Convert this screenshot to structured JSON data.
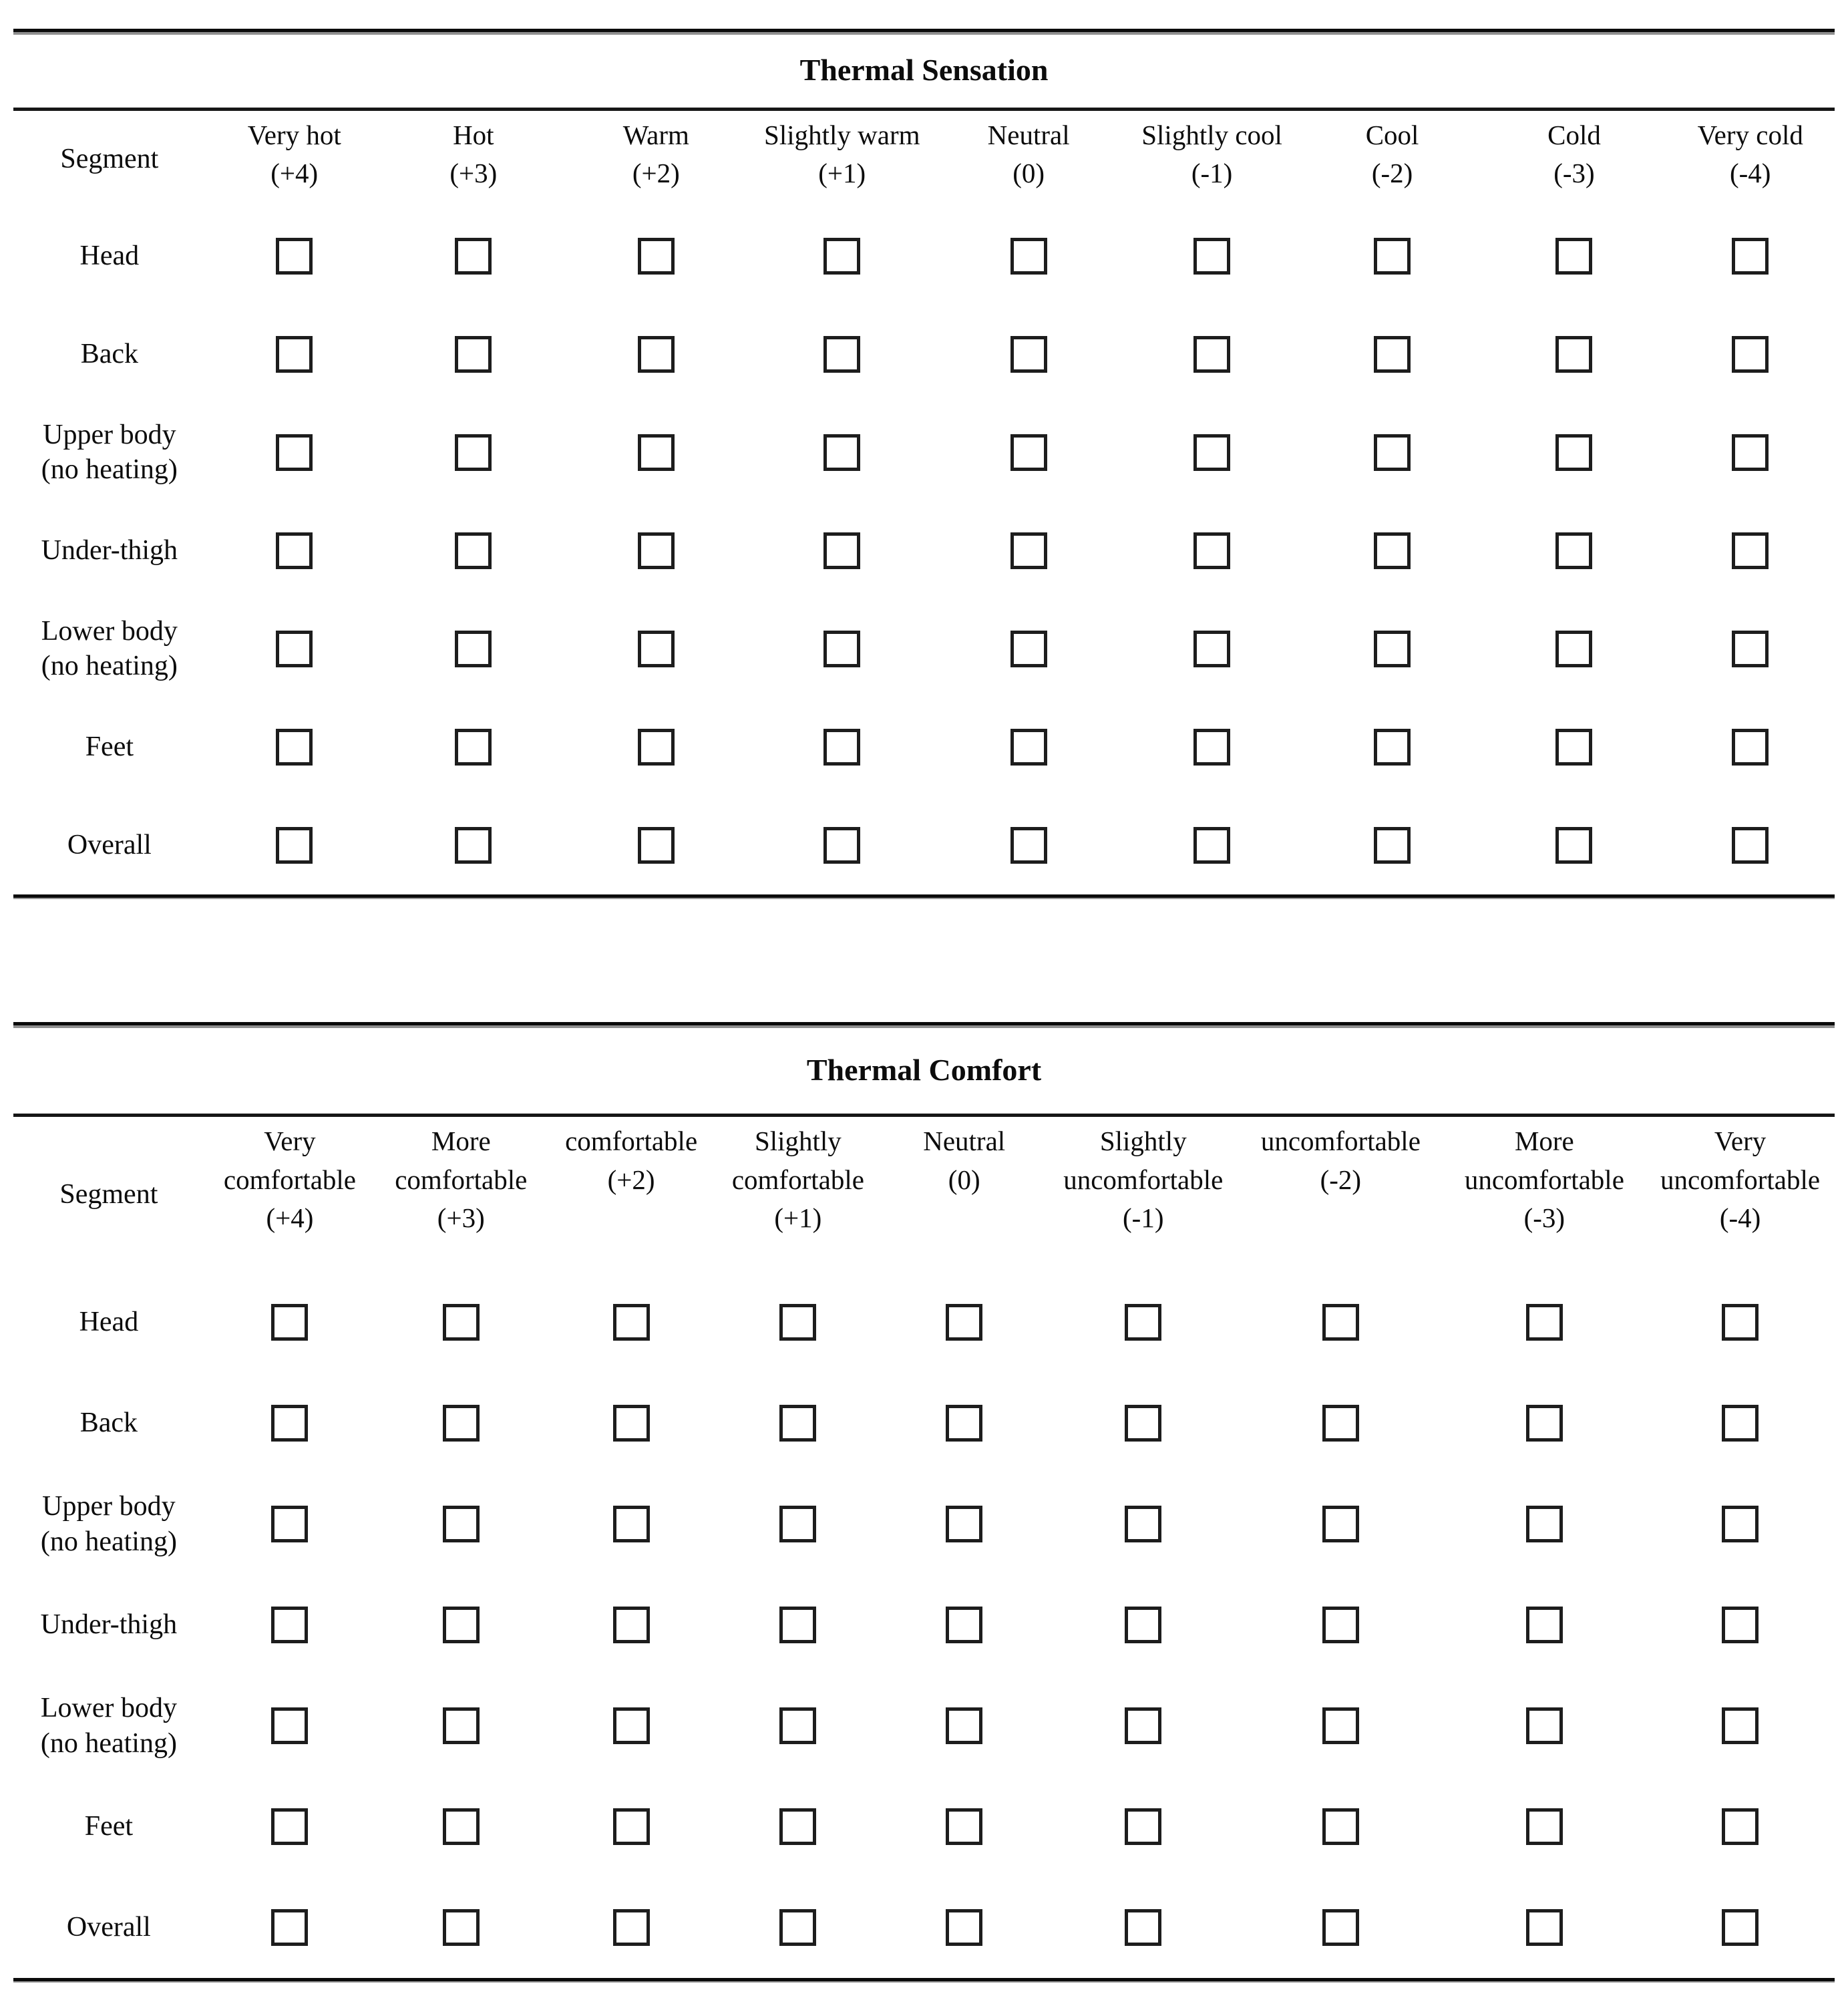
{
  "page": {
    "background_color": "#ffffff",
    "ink_color": "#0c0c0c"
  },
  "sensation": {
    "title": "Thermal Sensation",
    "segment_header": "Segment",
    "columns": [
      {
        "label": "Very hot",
        "value": "(+4)"
      },
      {
        "label": "Hot",
        "value": "(+3)"
      },
      {
        "label": "Warm",
        "value": "(+2)"
      },
      {
        "label": "Slightly warm",
        "value": "(+1)"
      },
      {
        "label": "Neutral",
        "value": "(0)"
      },
      {
        "label": "Slightly cool",
        "value": "(-1)"
      },
      {
        "label": "Cool",
        "value": "(-2)"
      },
      {
        "label": "Cold",
        "value": "(-3)"
      },
      {
        "label": "Very cold",
        "value": "(-4)"
      }
    ],
    "rows": [
      "Head",
      "Back",
      "Upper body\n(no heating)",
      "Under-thigh",
      "Lower body\n(no heating)",
      "Feet",
      "Overall"
    ],
    "checkbox_state": "unchecked"
  },
  "comfort": {
    "title": "Thermal Comfort",
    "segment_header": "Segment",
    "columns": [
      {
        "label": "Very comfortable",
        "value": "(+4)"
      },
      {
        "label": "More comfortable",
        "value": "(+3)"
      },
      {
        "label": "comfortable",
        "value": "(+2)"
      },
      {
        "label": "Slightly comfortable",
        "value": "(+1)"
      },
      {
        "label": "Neutral",
        "value": "(0)"
      },
      {
        "label": "Slightly uncomfortable",
        "value": "(-1)"
      },
      {
        "label": "uncomfortable",
        "value": "(-2)"
      },
      {
        "label": "More uncomfortable",
        "value": "(-3)"
      },
      {
        "label": "Very uncomfortable",
        "value": "(-4)"
      }
    ],
    "rows": [
      "Head",
      "Back",
      "Upper body\n(no heating)",
      "Under-thigh",
      "Lower body\n(no heating)",
      "Feet",
      "Overall"
    ],
    "checkbox_state": "unchecked"
  }
}
